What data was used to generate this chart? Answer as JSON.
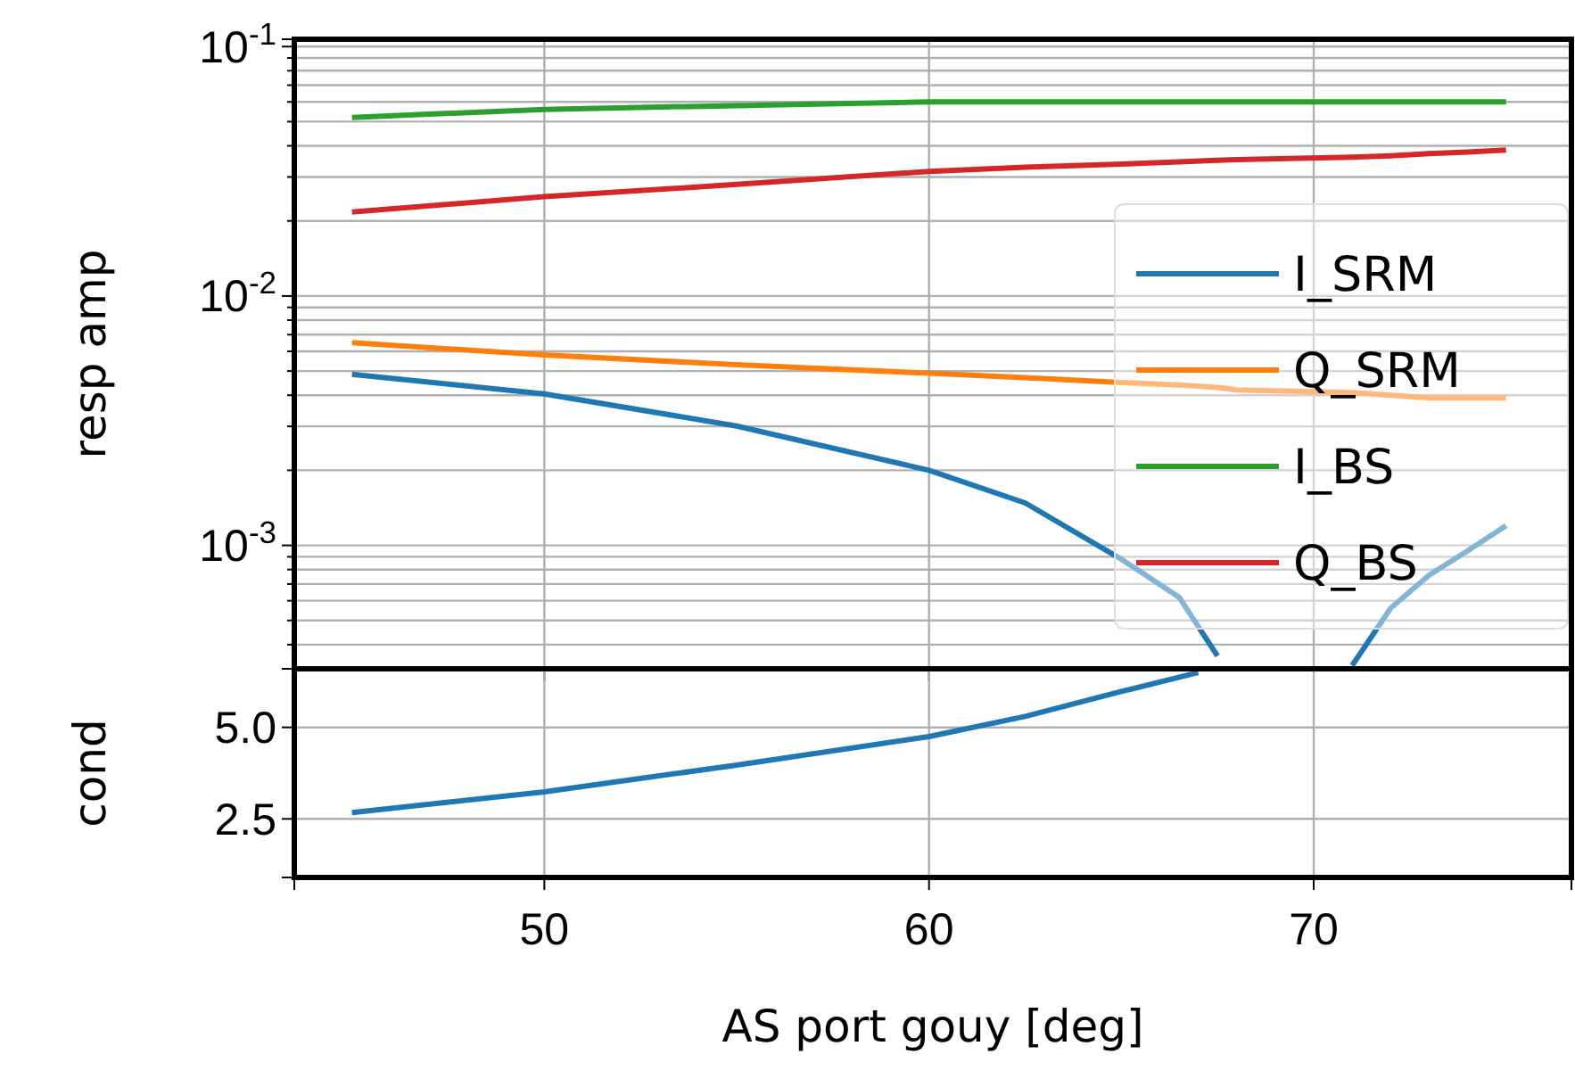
{
  "chart_data": [
    {
      "type": "line",
      "ylabel": "resp amp",
      "x": [
        45,
        50,
        55,
        60,
        62.5,
        65,
        66.5,
        67.5,
        68,
        71,
        72,
        73,
        74,
        75
      ],
      "log": "y",
      "grid": true,
      "legend": "center right",
      "tick_labels": "y",
      "xlim": [
        43.5,
        76.7
      ],
      "xticks": [
        50,
        60,
        70
      ],
      "ylim": [
        0.00032,
        0.107
      ],
      "yticks": [
        {
          "value": 0.0004,
          "label": null
        },
        {
          "value": 0.0005,
          "label": null
        },
        {
          "value": 0.0006,
          "label": null
        },
        {
          "value": 0.0007,
          "label": null
        },
        {
          "value": 0.0008,
          "label": null
        },
        {
          "value": 0.0009,
          "label": null
        },
        {
          "value": 0.001,
          "label": "10$^{-3}$"
        },
        {
          "value": 0.002,
          "label": null
        },
        {
          "value": 0.003,
          "label": null
        },
        {
          "value": 0.004,
          "label": null
        },
        {
          "value": 0.005,
          "label": null
        },
        {
          "value": 0.006,
          "label": null
        },
        {
          "value": 0.007,
          "label": null
        },
        {
          "value": 0.008,
          "label": null
        },
        {
          "value": 0.009,
          "label": null
        },
        {
          "value": 0.01,
          "label": "10$^{-2}$"
        },
        {
          "value": 0.02,
          "label": null
        },
        {
          "value": 0.03,
          "label": null
        },
        {
          "value": 0.04,
          "label": null
        },
        {
          "value": 0.05,
          "label": null
        },
        {
          "value": 0.06,
          "label": null
        },
        {
          "value": 0.07,
          "label": null
        },
        {
          "value": 0.08,
          "label": null
        },
        {
          "value": 0.09,
          "label": null
        },
        {
          "value": 0.1,
          "label": "10$^{-1}$"
        }
      ],
      "series": [
        {
          "name": "I_SRM",
          "color": "#1f77b4",
          "values": [
            0.00485,
            0.00405,
            0.00301,
            0.002,
            0.00148,
            0.00088,
            0.00062,
            0.00036,
            null,
            0.00033,
            0.00056,
            0.00076,
            0.00095,
            0.0012
          ]
        },
        {
          "name": "Q_SRM",
          "color": "#ff7f0e",
          "values": [
            0.0065,
            0.0058,
            0.0053,
            0.0049,
            0.0047,
            0.0045,
            0.0044,
            0.0043,
            0.0042,
            0.0041,
            0.004,
            0.0039,
            0.0039,
            0.0039
          ]
        },
        {
          "name": "I_BS",
          "color": "#2ca02c",
          "values": [
            0.052,
            0.056,
            0.058,
            0.06,
            0.06,
            0.06,
            0.06,
            0.06,
            0.06,
            0.06,
            0.06,
            0.06,
            0.06,
            0.06
          ]
        },
        {
          "name": "Q_BS",
          "color": "#d62728",
          "values": [
            0.0217,
            0.025,
            0.028,
            0.0316,
            0.0328,
            0.0338,
            0.0345,
            0.035,
            0.0352,
            0.036,
            0.0365,
            0.0372,
            0.0378,
            0.0385
          ]
        }
      ]
    },
    {
      "type": "line",
      "ylabel": "cond",
      "xlabel": "AS port gouy [deg]",
      "x": [
        45,
        50,
        55,
        60,
        62.5,
        65,
        67
      ],
      "grid": true,
      "legend": false,
      "xlim": [
        43.5,
        76.7
      ],
      "xticks": [
        50,
        60,
        70
      ],
      "ylim": [
        0.9,
        6.6
      ],
      "yticks": [
        {
          "value": 2.5,
          "label": "2.5"
        },
        {
          "value": 5,
          "label": "5.0"
        }
      ],
      "series": [
        {
          "color": "#1f77b4",
          "values": [
            2.67,
            3.24,
            3.97,
            4.75,
            5.3,
            5.98,
            6.5
          ]
        }
      ]
    }
  ]
}
